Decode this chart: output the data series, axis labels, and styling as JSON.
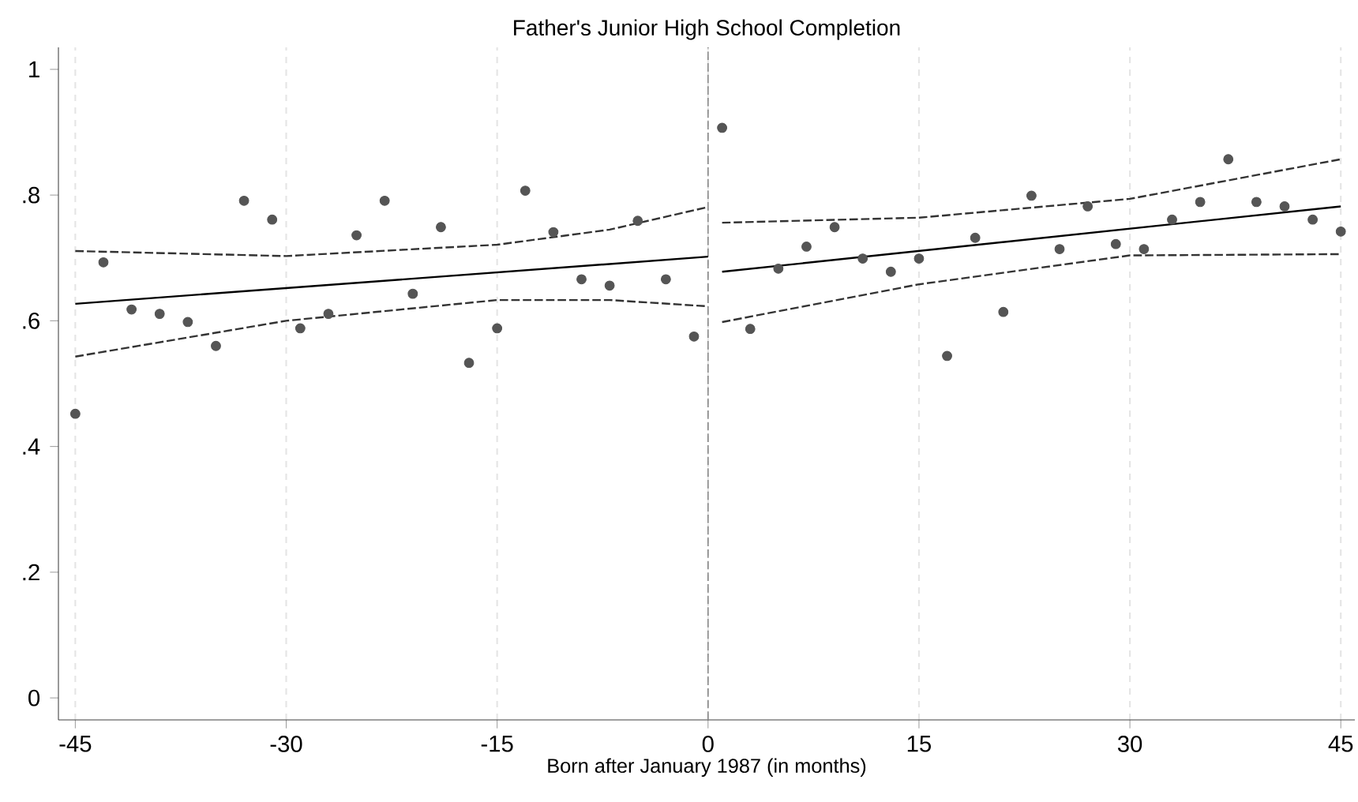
{
  "chart_data": {
    "type": "scatter",
    "title": "Father's Junior High School Completion",
    "xlabel": "Born after January 1987 (in months)",
    "xlim": [
      -46.2,
      46
    ],
    "ylim": [
      -0.035,
      1.035
    ],
    "xticks": [
      -45,
      -30,
      -15,
      0,
      15,
      30,
      45
    ],
    "yticks": [
      0,
      {
        "value": 0.2,
        "label": ".2"
      },
      {
        "value": 0.4,
        "label": ".4"
      },
      {
        "value": 0.6,
        "label": ".6"
      },
      {
        "value": 0.8,
        "label": ".8"
      },
      1
    ],
    "grid": "x",
    "series": [
      {
        "type": "scatter",
        "marker": "circle",
        "color": "#555555",
        "x": [
          -45,
          -43,
          -41,
          -39,
          -37,
          -35,
          -33,
          -31,
          -29,
          -27,
          -25,
          -23,
          -21,
          -19,
          -17,
          -15,
          -13,
          -11,
          -9,
          -7,
          -5,
          -3,
          -1
        ],
        "values": [
          0.452,
          0.693,
          0.618,
          0.611,
          0.598,
          0.56,
          0.791,
          0.761,
          0.588,
          0.611,
          0.736,
          0.791,
          0.643,
          0.749,
          0.533,
          0.588,
          0.807,
          0.741,
          0.666,
          0.656,
          0.759,
          0.666,
          0.575
        ]
      },
      {
        "type": "scatter",
        "marker": "circle",
        "color": "#555555",
        "x": [
          1,
          3,
          5,
          7,
          9,
          11,
          13,
          15,
          17,
          19,
          21,
          23,
          25,
          27,
          29,
          31,
          33,
          35,
          37,
          39,
          41,
          43,
          45
        ],
        "values": [
          0.907,
          0.587,
          0.683,
          0.718,
          0.749,
          0.699,
          0.678,
          0.699,
          0.544,
          0.732,
          0.614,
          0.799,
          0.714,
          0.782,
          0.722,
          0.714,
          0.761,
          0.789,
          0.857,
          0.789,
          0.782,
          0.761,
          0.742
        ]
      },
      {
        "type": "line",
        "line_style": "solid",
        "color": "#000000",
        "x": [
          -45,
          0
        ],
        "values": [
          0.627,
          0.702
        ]
      },
      {
        "type": "line",
        "line_style": "solid",
        "color": "#000000",
        "x": [
          1,
          45
        ],
        "values": [
          0.678,
          0.782
        ]
      },
      {
        "type": "line",
        "line_style": "dashed",
        "color": "#333333",
        "x": [
          -45,
          -30,
          -15,
          -7,
          0
        ],
        "values": [
          0.711,
          0.703,
          0.721,
          0.745,
          0.781
        ]
      },
      {
        "type": "line",
        "line_style": "dashed",
        "color": "#333333",
        "x": [
          -45,
          -30,
          -15,
          -7,
          0
        ],
        "values": [
          0.543,
          0.6,
          0.633,
          0.633,
          0.623
        ]
      },
      {
        "type": "line",
        "line_style": "dashed",
        "color": "#333333",
        "x": [
          1,
          15,
          30,
          45
        ],
        "values": [
          0.756,
          0.764,
          0.794,
          0.857
        ]
      },
      {
        "type": "line",
        "line_style": "dashed",
        "color": "#333333",
        "x": [
          1,
          15,
          30,
          45
        ],
        "values": [
          0.598,
          0.658,
          0.704,
          0.706
        ]
      }
    ],
    "ref_lines": [
      {
        "axis": "x",
        "value": 0,
        "color": "#888888",
        "line_style": "dashed"
      }
    ]
  }
}
